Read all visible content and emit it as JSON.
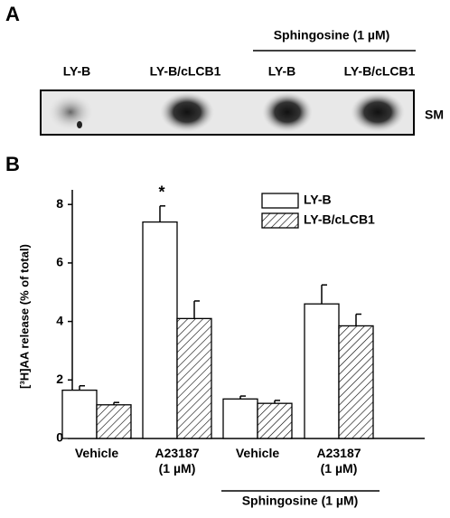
{
  "panel_a": {
    "label": "A",
    "group_label": "Sphingosine (1 µM)",
    "lanes": [
      "LY-B",
      "LY-B/cLCB1",
      "LY-B",
      "LY-B/cLCB1"
    ],
    "band_label": "SM"
  },
  "chart_data": {
    "type": "bar",
    "panel_label": "B",
    "y_label": "[³H]AA release (% of total)",
    "categories": [
      "Vehicle",
      "A23187\n(1 µM)",
      "Vehicle",
      "A23187\n(1 µM)"
    ],
    "group_label": "Sphingosine (1 µM)",
    "series": [
      {
        "name": "LY-B",
        "color": "#ffffff",
        "hatch": false,
        "values": [
          1.65,
          7.4,
          1.35,
          4.6
        ],
        "errors": [
          0.15,
          0.55,
          0.1,
          0.65
        ]
      },
      {
        "name": "LY-B/cLCB1",
        "color": "#ffffff",
        "hatch": true,
        "values": [
          1.15,
          4.1,
          1.2,
          3.85
        ],
        "errors": [
          0.08,
          0.6,
          0.1,
          0.4
        ]
      }
    ],
    "annotation": "*",
    "ylim": [
      0,
      8.5
    ],
    "yticks": [
      0,
      2,
      4,
      6,
      8
    ]
  }
}
